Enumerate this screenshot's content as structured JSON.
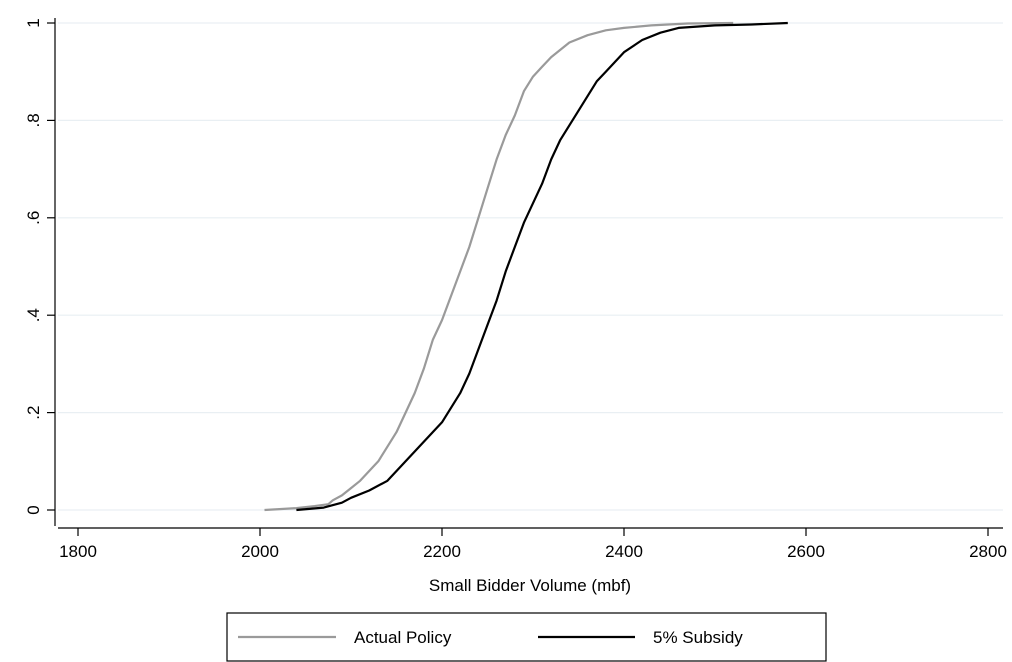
{
  "chart_data": {
    "type": "line",
    "title": "",
    "xlabel": "Small Bidder Volume (mbf)",
    "ylabel": "",
    "xlim": [
      1800,
      2800
    ],
    "ylim": [
      0,
      1
    ],
    "x_ticks": [
      "1800",
      "2000",
      "2200",
      "2400",
      "2600",
      "2800"
    ],
    "y_ticks": [
      "0",
      ".2",
      ".4",
      ".6",
      ".8",
      "1"
    ],
    "grid": true,
    "legend_position": "bottom",
    "series": [
      {
        "name": "Actual Policy",
        "color": "#9a9a9a",
        "points": [
          [
            2005,
            0.0
          ],
          [
            2040,
            0.004
          ],
          [
            2060,
            0.008
          ],
          [
            2075,
            0.012
          ],
          [
            2080,
            0.02
          ],
          [
            2090,
            0.03
          ],
          [
            2100,
            0.045
          ],
          [
            2110,
            0.06
          ],
          [
            2120,
            0.08
          ],
          [
            2130,
            0.1
          ],
          [
            2140,
            0.13
          ],
          [
            2150,
            0.16
          ],
          [
            2160,
            0.2
          ],
          [
            2170,
            0.24
          ],
          [
            2180,
            0.29
          ],
          [
            2190,
            0.35
          ],
          [
            2200,
            0.39
          ],
          [
            2210,
            0.44
          ],
          [
            2220,
            0.49
          ],
          [
            2230,
            0.54
          ],
          [
            2240,
            0.6
          ],
          [
            2250,
            0.66
          ],
          [
            2260,
            0.72
          ],
          [
            2270,
            0.77
          ],
          [
            2280,
            0.81
          ],
          [
            2290,
            0.86
          ],
          [
            2300,
            0.89
          ],
          [
            2310,
            0.91
          ],
          [
            2320,
            0.93
          ],
          [
            2340,
            0.96
          ],
          [
            2360,
            0.975
          ],
          [
            2380,
            0.985
          ],
          [
            2400,
            0.99
          ],
          [
            2430,
            0.995
          ],
          [
            2470,
            0.999
          ],
          [
            2520,
            1.0
          ]
        ]
      },
      {
        "name": "5% Subsidy",
        "color": "#000000",
        "points": [
          [
            2040,
            0.0
          ],
          [
            2070,
            0.005
          ],
          [
            2090,
            0.015
          ],
          [
            2100,
            0.025
          ],
          [
            2120,
            0.04
          ],
          [
            2140,
            0.06
          ],
          [
            2160,
            0.1
          ],
          [
            2180,
            0.14
          ],
          [
            2200,
            0.18
          ],
          [
            2210,
            0.21
          ],
          [
            2220,
            0.24
          ],
          [
            2230,
            0.28
          ],
          [
            2240,
            0.33
          ],
          [
            2250,
            0.38
          ],
          [
            2260,
            0.43
          ],
          [
            2270,
            0.49
          ],
          [
            2280,
            0.54
          ],
          [
            2290,
            0.59
          ],
          [
            2300,
            0.63
          ],
          [
            2310,
            0.67
          ],
          [
            2320,
            0.72
          ],
          [
            2330,
            0.76
          ],
          [
            2340,
            0.79
          ],
          [
            2350,
            0.82
          ],
          [
            2360,
            0.85
          ],
          [
            2370,
            0.88
          ],
          [
            2380,
            0.9
          ],
          [
            2400,
            0.94
          ],
          [
            2420,
            0.965
          ],
          [
            2440,
            0.98
          ],
          [
            2460,
            0.99
          ],
          [
            2500,
            0.995
          ],
          [
            2540,
            0.997
          ],
          [
            2580,
            1.0
          ]
        ]
      }
    ]
  }
}
